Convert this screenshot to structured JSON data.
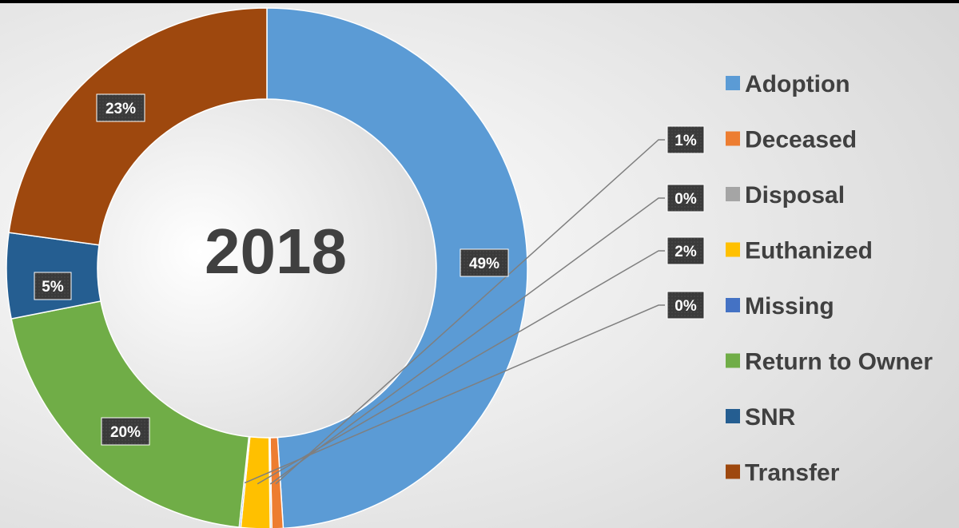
{
  "chart_data": {
    "type": "pie",
    "title": "2018",
    "categories": [
      "Adoption",
      "Deceased",
      "Disposal",
      "Euthanized",
      "Missing",
      "Return to Owner",
      "SNR",
      "Transfer"
    ],
    "values": [
      49,
      0.7,
      0.1,
      1.8,
      0.1,
      20.2,
      5.3,
      22.8
    ],
    "labels": [
      "49%",
      "1%",
      "0%",
      "2%",
      "0%",
      "20%",
      "5%",
      "23%"
    ],
    "colors": [
      "#5B9BD5",
      "#ED7D31",
      "#A5A5A5",
      "#FFC000",
      "#4472C4",
      "#70AD47",
      "#255E91",
      "#9E480E"
    ],
    "legend_position": "right",
    "donut": true
  }
}
